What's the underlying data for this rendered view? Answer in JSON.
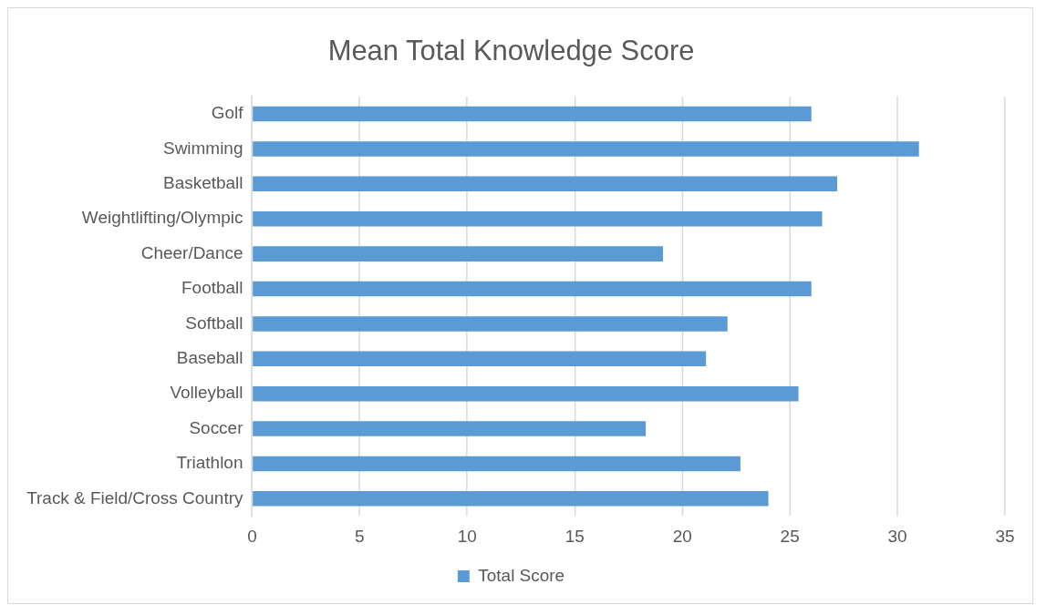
{
  "chart_data": {
    "type": "bar",
    "orientation": "horizontal",
    "title": "Mean Total Knowledge Score",
    "categories": [
      "Golf",
      "Swimming",
      "Basketball",
      "Weightlifting/Olympic",
      "Cheer/Dance",
      "Football",
      "Softball",
      "Baseball",
      "Volleyball",
      "Soccer",
      "Triathlon",
      "Track & Field/Cross Country"
    ],
    "series": [
      {
        "name": "Total Score",
        "color": "#5b9bd5",
        "values": [
          26.0,
          31.0,
          27.2,
          26.5,
          19.1,
          26.0,
          22.1,
          21.1,
          25.4,
          18.3,
          22.7,
          24.0
        ]
      }
    ],
    "xlim": [
      0,
      35
    ],
    "xticks": [
      0,
      5,
      10,
      15,
      20,
      25,
      30,
      35
    ],
    "grid": "x",
    "legend": "bottom"
  }
}
